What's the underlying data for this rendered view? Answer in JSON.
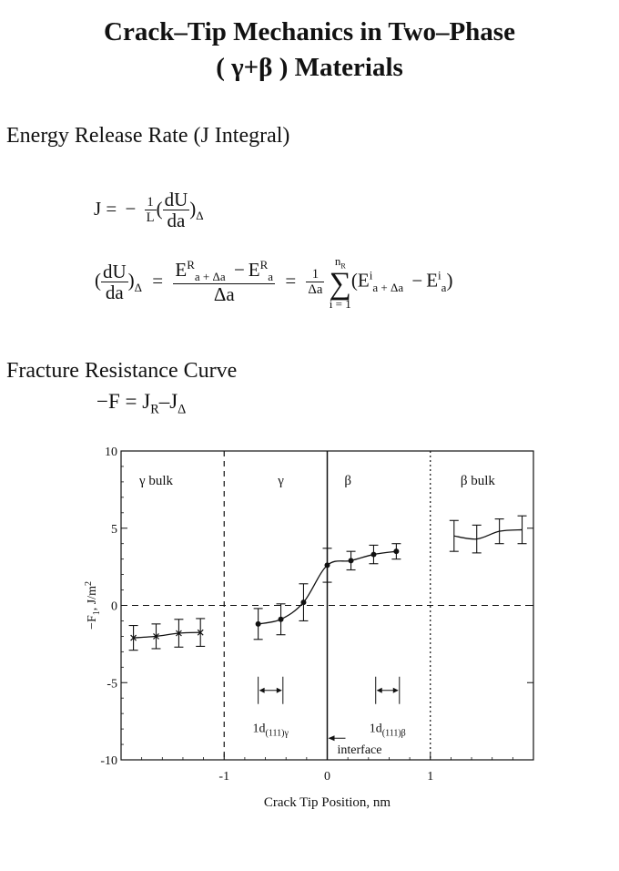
{
  "title": {
    "line1": "Crack–Tip Mechanics in Two–Phase",
    "line2": "( γ+β ) Materials"
  },
  "section1": {
    "heading": "Energy Release Rate (J Integral)",
    "eq1": {
      "lhs": "J =",
      "minus": "−",
      "frac_num": "1",
      "frac_den": "L",
      "paren_open": "(",
      "d_num": "dU",
      "d_den": "da",
      "paren_close": ")",
      "delta": "Δ"
    },
    "eq2": {
      "lhs_open": "(",
      "lhs_num": "dU",
      "lhs_den": "da",
      "lhs_close": ")",
      "lhs_delta": "Δ",
      "eq": "=",
      "E": "E",
      "R": "R",
      "sub_a_da": "a + Δa",
      "minus": "−",
      "sub_a": "a",
      "den": "Δa",
      "eq2": "=",
      "one": "1",
      "den2": "Δa",
      "sum_top": "n",
      "sum_top_sub": "R",
      "sum_sym": "∑",
      "sum_bottom": "i = 1",
      "term_open": "(E",
      "i": "i",
      "term_close": ")"
    }
  },
  "section2": {
    "heading": "Fracture Resistance Curve",
    "eq": {
      "lhs": "−F = J",
      "sub_R": "R",
      "mid": "–J",
      "sub_delta": "Δ"
    }
  },
  "chart_data": {
    "type": "line",
    "xlabel": "Crack Tip Position, nm",
    "ylabel": "−F",
    "ylabel_sub": "1",
    "ylabel_unit": ", J/m",
    "ylabel_sup": "2",
    "xlim": [
      -2.0,
      2.0
    ],
    "ylim": [
      -10,
      10
    ],
    "x_ticks": [
      -1,
      0,
      1
    ],
    "y_ticks": [
      -10,
      -5,
      0,
      5,
      10
    ],
    "region_labels": [
      "γ bulk",
      "γ",
      "β",
      "β bulk"
    ],
    "boundaries": [
      {
        "x": -1.0,
        "style": "dashed"
      },
      {
        "x": 0.0,
        "style": "solid"
      },
      {
        "x": 1.0,
        "style": "dotted"
      }
    ],
    "zero_line": "dashed",
    "series": [
      {
        "marker": "x",
        "x": [
          -1.88,
          -1.66,
          -1.44,
          -1.23
        ],
        "y": [
          -2.1,
          -2.0,
          -1.8,
          -1.75
        ],
        "err": [
          0.8,
          0.8,
          0.9,
          0.9
        ]
      },
      {
        "marker": "dot",
        "x": [
          -0.67,
          -0.45,
          -0.23,
          0.0,
          0.23,
          0.45,
          0.67
        ],
        "y": [
          -1.2,
          -0.9,
          0.2,
          2.6,
          2.9,
          3.3,
          3.5
        ],
        "err": [
          1.0,
          1.0,
          1.2,
          1.1,
          0.6,
          0.6,
          0.5
        ]
      },
      {
        "marker": "none",
        "x": [
          1.23,
          1.45,
          1.67,
          1.89
        ],
        "y": [
          4.5,
          4.3,
          4.8,
          4.9
        ],
        "err": [
          1.0,
          0.9,
          0.8,
          0.9
        ]
      }
    ],
    "spacing_markers": [
      {
        "x1": -0.67,
        "x2": -0.43,
        "label": "1d",
        "sub": "(111)γ"
      },
      {
        "x1": 0.47,
        "x2": 0.7,
        "label": "1d",
        "sub": "(111)β"
      }
    ],
    "annotation": {
      "text": "interface"
    }
  }
}
